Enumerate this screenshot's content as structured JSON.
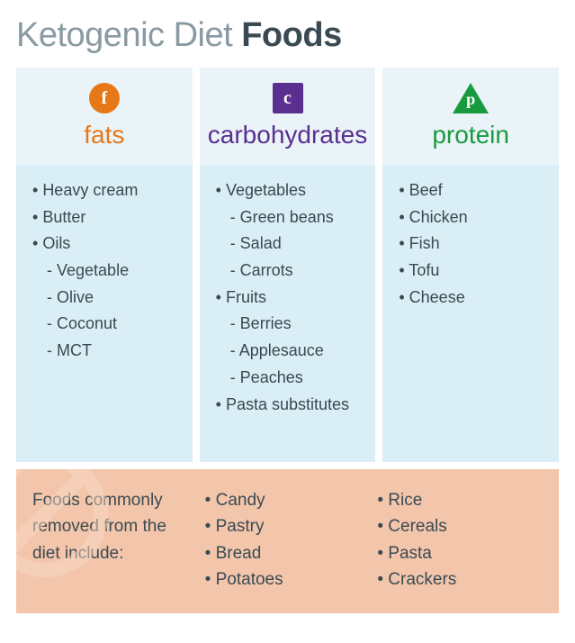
{
  "title_part1": "Ketogenic Diet ",
  "title_part2": "Foods",
  "colors": {
    "title_light": "#8a9aa2",
    "title_bold": "#3a4a52",
    "fats": "#e67817",
    "carbs": "#5a2f8f",
    "protein": "#1a9a3f",
    "header_bg": "#eaf4f8",
    "body_bg": "#d9eef5",
    "text": "#3a4a52",
    "removed_bg": "#f3c6ab",
    "removed_sign": "#f7d9c5"
  },
  "columns": [
    {
      "key": "fats",
      "letter": "f",
      "label": "fats",
      "shape": "circle",
      "items": [
        {
          "t": "Heavy cream"
        },
        {
          "t": "Butter"
        },
        {
          "t": "Oils",
          "sub": [
            "Vegetable",
            "Olive",
            "Coconut",
            "MCT"
          ]
        }
      ]
    },
    {
      "key": "carbs",
      "letter": "c",
      "label": "carbohydrates",
      "shape": "square",
      "items": [
        {
          "t": "Vegetables",
          "sub": [
            "Green beans",
            "Salad",
            "Carrots"
          ]
        },
        {
          "t": "Fruits",
          "sub": [
            "Berries",
            "Applesauce",
            "Peaches"
          ]
        },
        {
          "t": "Pasta substitutes"
        }
      ]
    },
    {
      "key": "protein",
      "letter": "p",
      "label": "protein",
      "shape": "triangle",
      "items": [
        {
          "t": "Beef"
        },
        {
          "t": "Chicken"
        },
        {
          "t": "Fish"
        },
        {
          "t": "Tofu"
        },
        {
          "t": "Cheese"
        }
      ]
    }
  ],
  "removed": {
    "intro": "Foods commonly removed from the diet include:",
    "col1": [
      "Candy",
      "Pastry",
      "Bread",
      "Potatoes"
    ],
    "col2": [
      "Rice",
      "Cereals",
      "Pasta",
      "Crackers"
    ]
  }
}
